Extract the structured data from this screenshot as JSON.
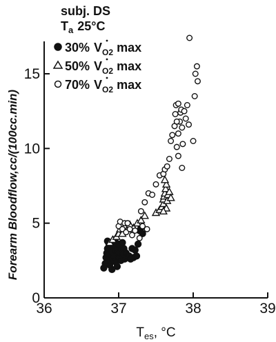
{
  "chart_data": {
    "type": "scatter",
    "title": "",
    "annotation": {
      "subject": "subj. DS",
      "ta_symbol": "T",
      "ta_sub": "a",
      "ta_value": "25°C"
    },
    "xlabel": {
      "main": "T",
      "sub": "es",
      "unit": ", °C"
    },
    "ylabel": "Forearm Bloodflow,cc/(100cc.min)",
    "xlim": [
      36,
      39
    ],
    "ylim": [
      0,
      16.5
    ],
    "xticks": [
      36,
      37,
      38,
      39
    ],
    "yticks": [
      0,
      5,
      10,
      15
    ],
    "grid": false,
    "legend_position": "top-left",
    "series": [
      {
        "name": "30% V̇O₂ max",
        "label_pct": "30%",
        "label_v": "V",
        "label_sub": "O2",
        "label_max": "max",
        "marker": "filled-circle",
        "points": [
          [
            36.8,
            2.0
          ],
          [
            36.82,
            2.3
          ],
          [
            36.83,
            2.7
          ],
          [
            36.84,
            3.0
          ],
          [
            36.85,
            3.3
          ],
          [
            36.86,
            2.9
          ],
          [
            36.87,
            3.6
          ],
          [
            36.88,
            2.2
          ],
          [
            36.89,
            2.5
          ],
          [
            36.9,
            3.1
          ],
          [
            36.91,
            1.9
          ],
          [
            36.92,
            2.6
          ],
          [
            36.93,
            3.4
          ],
          [
            36.94,
            2.8
          ],
          [
            36.95,
            3.5
          ],
          [
            36.96,
            2.4
          ],
          [
            36.97,
            3.2
          ],
          [
            36.98,
            2.1
          ],
          [
            36.99,
            3.0
          ],
          [
            37.0,
            3.6
          ],
          [
            37.01,
            2.7
          ],
          [
            37.02,
            3.4
          ],
          [
            37.03,
            2.5
          ],
          [
            37.04,
            3.3
          ],
          [
            37.05,
            3.7
          ],
          [
            37.06,
            2.9
          ],
          [
            37.07,
            3.3
          ],
          [
            37.08,
            2.6
          ],
          [
            37.1,
            3.0
          ],
          [
            37.12,
            2.7
          ],
          [
            37.14,
            2.8
          ],
          [
            37.16,
            2.6
          ],
          [
            37.18,
            3.3
          ],
          [
            37.2,
            2.7
          ],
          [
            37.22,
            3.2
          ],
          [
            37.24,
            2.8
          ],
          [
            37.26,
            3.6
          ],
          [
            37.28,
            4.5
          ],
          [
            37.3,
            4.7
          ],
          [
            37.32,
            4.3
          ],
          [
            36.85,
            3.8
          ],
          [
            36.95,
            3.9
          ]
        ]
      },
      {
        "name": "50% V̇O₂ max",
        "label_pct": "50%",
        "label_v": "V",
        "label_sub": "O2",
        "label_max": "max",
        "marker": "open-triangle",
        "points": [
          [
            36.88,
            3.7
          ],
          [
            36.92,
            3.9
          ],
          [
            36.97,
            4.1
          ],
          [
            37.0,
            4.3
          ],
          [
            37.02,
            4.6
          ],
          [
            37.05,
            4.3
          ],
          [
            37.08,
            4.8
          ],
          [
            37.12,
            4.6
          ],
          [
            37.15,
            4.9
          ],
          [
            37.2,
            4.7
          ],
          [
            37.25,
            5.0
          ],
          [
            37.3,
            5.2
          ],
          [
            37.35,
            5.5
          ],
          [
            37.5,
            5.7
          ],
          [
            37.55,
            5.9
          ],
          [
            37.58,
            6.1
          ],
          [
            37.6,
            6.3
          ],
          [
            37.6,
            6.6
          ],
          [
            37.61,
            6.8
          ],
          [
            37.62,
            7.0
          ],
          [
            37.63,
            7.3
          ],
          [
            37.64,
            7.6
          ],
          [
            37.62,
            7.9
          ],
          [
            37.65,
            6.5
          ],
          [
            37.66,
            6.9
          ],
          [
            37.68,
            7.1
          ],
          [
            37.7,
            6.7
          ],
          [
            37.64,
            6.0
          ],
          [
            37.6,
            5.8
          ]
        ]
      },
      {
        "name": "70% V̇O₂ max",
        "label_pct": "70%",
        "label_v": "V",
        "label_sub": "O2",
        "label_max": "max",
        "marker": "open-circle",
        "points": [
          [
            37.0,
            4.8
          ],
          [
            37.02,
            5.1
          ],
          [
            37.05,
            4.6
          ],
          [
            37.08,
            5.0
          ],
          [
            37.1,
            4.4
          ],
          [
            37.12,
            5.0
          ],
          [
            37.15,
            4.6
          ],
          [
            37.18,
            4.2
          ],
          [
            37.22,
            4.5
          ],
          [
            37.28,
            4.0
          ],
          [
            37.32,
            4.8
          ],
          [
            37.38,
            4.6
          ],
          [
            37.3,
            5.8
          ],
          [
            37.35,
            6.4
          ],
          [
            37.4,
            7.0
          ],
          [
            37.45,
            6.9
          ],
          [
            37.5,
            7.6
          ],
          [
            37.55,
            8.2
          ],
          [
            37.6,
            8.3
          ],
          [
            37.62,
            8.6
          ],
          [
            37.65,
            8.8
          ],
          [
            37.68,
            9.3
          ],
          [
            37.7,
            10.5
          ],
          [
            37.72,
            10.9
          ],
          [
            37.75,
            11.5
          ],
          [
            37.76,
            12.3
          ],
          [
            37.77,
            12.9
          ],
          [
            37.78,
            10.1
          ],
          [
            37.8,
            11.0
          ],
          [
            37.8,
            9.5
          ],
          [
            37.82,
            11.8
          ],
          [
            37.83,
            12.4
          ],
          [
            37.84,
            12.6
          ],
          [
            37.85,
            11.4
          ],
          [
            37.86,
            10.3
          ],
          [
            37.88,
            12.5
          ],
          [
            37.9,
            12.0
          ],
          [
            37.92,
            12.9
          ],
          [
            37.94,
            11.6
          ],
          [
            37.95,
            17.4
          ],
          [
            38.0,
            10.5
          ],
          [
            38.02,
            13.5
          ],
          [
            38.03,
            15.0
          ],
          [
            38.05,
            15.5
          ],
          [
            38.06,
            14.5
          ],
          [
            37.85,
            8.7
          ],
          [
            37.8,
            13.0
          ],
          [
            37.78,
            11.8
          ]
        ]
      }
    ]
  }
}
